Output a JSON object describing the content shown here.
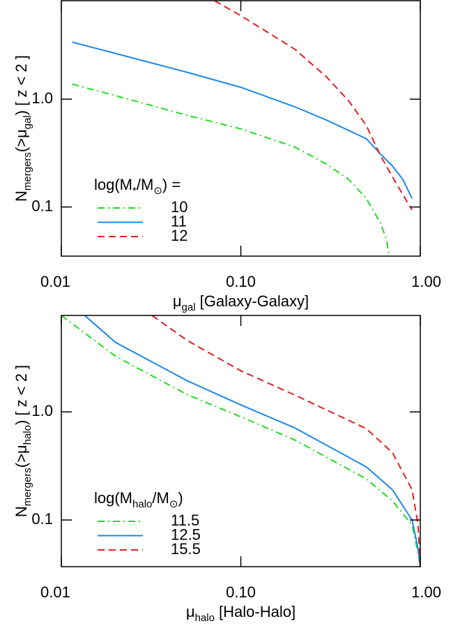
{
  "chart_data": [
    {
      "type": "line",
      "xlog": true,
      "ylog": true,
      "xlabel": [
        "μ",
        "gal",
        " [Galaxy-Galaxy]"
      ],
      "ylabel": [
        "N",
        "mergers",
        "(>μ",
        "gal",
        ")  [ z < 2 ]"
      ],
      "legend_title": [
        "log(M",
        "*",
        "/M",
        "⊙",
        ") ="
      ],
      "xlim": [
        0.01,
        1
      ],
      "ylim": [
        0.035,
        8.2
      ],
      "xticks": [
        0.01,
        {
          "value": 0.1,
          "label": "0.10"
        },
        {
          "value": 1,
          "label": "1.00"
        }
      ],
      "yticks": [
        {
          "value": 0.1,
          "label": "0.1"
        },
        {
          "value": 1,
          "label": "1.0"
        }
      ],
      "series": [
        {
          "name": "10",
          "color": "#22dd22",
          "dash": "dashdot",
          "x": [
            0.0115,
            0.02,
            0.05,
            0.1,
            0.2,
            0.3,
            0.4,
            0.5,
            0.6,
            0.65,
            0.67
          ],
          "values": [
            1.38,
            1.08,
            0.71,
            0.53,
            0.36,
            0.25,
            0.18,
            0.12,
            0.071,
            0.049,
            0.035
          ]
        },
        {
          "name": "11",
          "color": "#1e88e5",
          "dash": "solid",
          "x": [
            0.0115,
            0.02,
            0.05,
            0.1,
            0.2,
            0.3,
            0.5,
            0.6,
            0.7,
            0.8,
            0.9
          ],
          "values": [
            3.38,
            2.66,
            1.78,
            1.29,
            0.85,
            0.64,
            0.43,
            0.31,
            0.24,
            0.18,
            0.12
          ]
        },
        {
          "name": "12",
          "color": "#e02020",
          "dash": "dashed",
          "x": [
            0.0714,
            0.1,
            0.2,
            0.3,
            0.4,
            0.5,
            0.6,
            0.7,
            0.8,
            0.9
          ],
          "values": [
            8.2,
            5.95,
            2.91,
            1.61,
            0.96,
            0.57,
            0.3,
            0.19,
            0.13,
            0.094
          ]
        }
      ]
    },
    {
      "type": "line",
      "xlog": true,
      "ylog": true,
      "xlabel": [
        "μ",
        "halo",
        " [Halo-Halo]"
      ],
      "ylabel": [
        "N",
        "mergers",
        "(>μ",
        "halo",
        ")  [ z < 2 ]"
      ],
      "legend_title": [
        "log(M",
        "halo",
        "/M",
        "⊙",
        ")"
      ],
      "xlim": [
        0.01,
        1
      ],
      "ylim": [
        0.037,
        7.8
      ],
      "xticks": [
        0.01,
        {
          "value": 0.1,
          "label": "0.10"
        },
        {
          "value": 1,
          "label": "1.00"
        }
      ],
      "yticks": [
        {
          "value": 0.1,
          "label": "0.1"
        },
        {
          "value": 1,
          "label": "1.0"
        }
      ],
      "series": [
        {
          "name": "11.5",
          "color": "#22dd22",
          "dash": "dashdot",
          "x": [
            0.01,
            0.02,
            0.05,
            0.1,
            0.2,
            0.5,
            0.7,
            0.9,
            0.97,
            1
          ],
          "values": [
            7.8,
            3.28,
            1.45,
            0.9,
            0.55,
            0.24,
            0.15,
            0.09,
            0.05,
            0.037
          ]
        },
        {
          "name": "12.5",
          "color": "#1e88e5",
          "dash": "solid",
          "x": [
            0.0135,
            0.02,
            0.05,
            0.1,
            0.2,
            0.5,
            0.7,
            0.9,
            0.97,
            1
          ],
          "values": [
            7.8,
            4.4,
            1.95,
            1.16,
            0.71,
            0.31,
            0.19,
            0.1,
            0.055,
            0.037
          ]
        },
        {
          "name": "15.5",
          "color": "#e02020",
          "dash": "dashed",
          "x": [
            0.032,
            0.05,
            0.1,
            0.2,
            0.5,
            0.7,
            0.9,
            0.97,
            1
          ],
          "values": [
            7.8,
            4.6,
            2.4,
            1.43,
            0.7,
            0.42,
            0.19,
            0.093,
            0.037
          ]
        }
      ]
    }
  ]
}
